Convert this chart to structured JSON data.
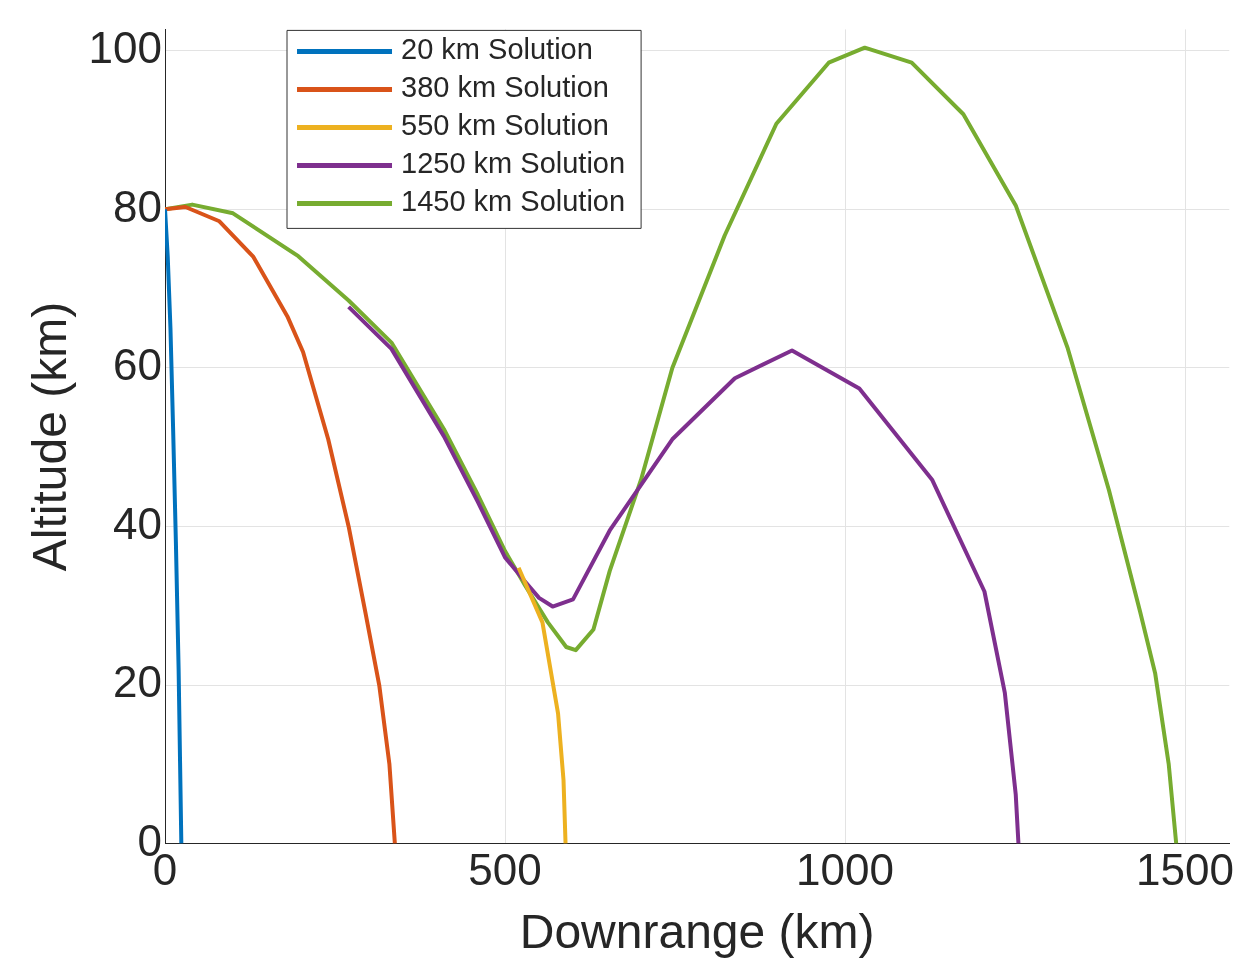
{
  "chart_data": {
    "type": "line",
    "xlabel": "Downrange (km)",
    "ylabel": "Altitude (km)",
    "xlim": [
      0,
      1565
    ],
    "ylim": [
      0,
      102.7
    ],
    "xticks": [
      0,
      500,
      1000,
      1500
    ],
    "yticks": [
      0,
      20,
      40,
      60,
      80,
      100
    ],
    "grid": true,
    "legend": "top left",
    "marker": "none",
    "line_style": "solid",
    "series": [
      {
        "name": "20 km Solution",
        "color": "#0072bd",
        "x": [
          0,
          4,
          8,
          12,
          16,
          20,
          24
        ],
        "values": [
          80,
          74,
          65,
          52,
          38,
          22,
          0
        ]
      },
      {
        "name": "380 km Solution",
        "color": "#d95319",
        "x": [
          0,
          30,
          80,
          130,
          180,
          203,
          240,
          270,
          295,
          315,
          330,
          338
        ],
        "values": [
          80,
          80.3,
          78.5,
          74,
          66.5,
          62,
          51,
          40,
          29,
          20,
          10,
          0
        ]
      },
      {
        "name": "550 km Solution",
        "color": "#edb120",
        "x": [
          520,
          555,
          578,
          586,
          589
        ],
        "values": [
          34.8,
          27.9,
          16.4,
          8,
          0
        ]
      },
      {
        "name": "1250 km Solution",
        "color": "#7e2f8e",
        "x": [
          270,
          333,
          410,
          460,
          500,
          530,
          550,
          570,
          600,
          654,
          746,
          838,
          922,
          1021,
          1128,
          1205,
          1235,
          1251,
          1255
        ],
        "values": [
          67.7,
          62.4,
          51.4,
          43.1,
          36.1,
          33,
          31,
          29.9,
          30.8,
          39.5,
          51,
          58.7,
          62.2,
          57.4,
          45.9,
          31.8,
          19,
          6.2,
          0
        ]
      },
      {
        "name": "1450 km Solution",
        "color": "#77ac30",
        "x": [
          0,
          40,
          100,
          196,
          270,
          333,
          410,
          460,
          500,
          530,
          563,
          590,
          604,
          630,
          654,
          700,
          746,
          823,
          899,
          976,
          1029,
          1098,
          1174,
          1251,
          1327,
          1388,
          1434,
          1456,
          1476,
          1487
        ],
        "values": [
          80,
          80.6,
          79.5,
          74.1,
          68.5,
          63.2,
          52.3,
          44,
          36.9,
          32.5,
          27.9,
          24.8,
          24.4,
          27,
          34.4,
          45.9,
          60,
          76.7,
          90.8,
          98.5,
          100.4,
          98.5,
          92,
          80.5,
          62.6,
          44.6,
          29.2,
          21.5,
          10,
          0
        ]
      }
    ]
  }
}
